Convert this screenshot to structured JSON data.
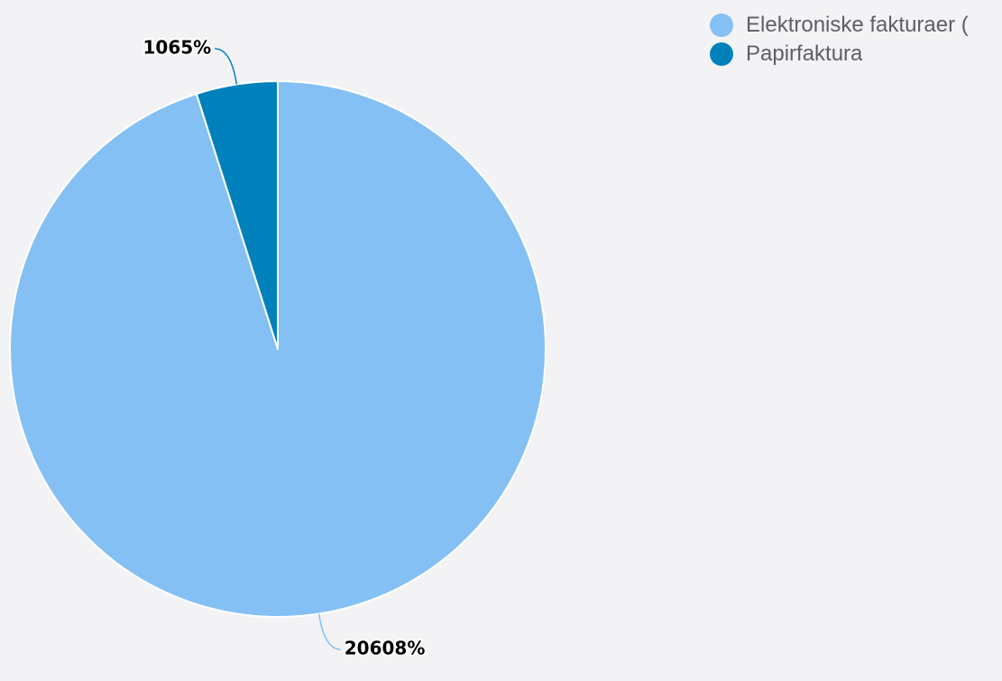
{
  "chart_data": {
    "type": "pie",
    "title": "",
    "slices": [
      {
        "name": "Elektroniske fakturaer (",
        "value": 95.09,
        "label": "20608%",
        "color": "#84c0f4"
      },
      {
        "name": "Papirfaktura",
        "value": 4.91,
        "label": "1065%",
        "color": "#0081bc"
      }
    ],
    "start_angle_deg": 0,
    "direction": "clockwise",
    "legend_position": "top-right",
    "data_labels": "outside-with-leader-lines"
  }
}
